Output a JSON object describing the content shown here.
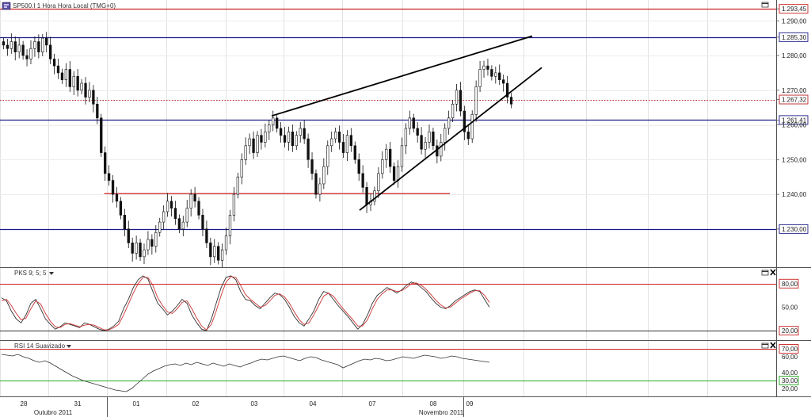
{
  "header": {
    "symbol_icon": "chart-symbol-icon",
    "instrument_title": "SP500.I 1 Hora Hora Local (TMG+0)"
  },
  "chart_data": [
    {
      "type": "candlestick",
      "name": "SP500.I 1 Hora",
      "ylim": [
        1219,
        1296
      ],
      "y_ticks": [
        "1.293,45",
        "1.290,00",
        "1.285,30",
        "1.280,00",
        "1.270,00",
        "1.267,32",
        "1.261,41",
        "1.260,00",
        "1.250,00",
        "1.240,00",
        "1.230,00"
      ],
      "h_lines": [
        {
          "value": 1293.45,
          "label": "1.293,45",
          "color": "#cc2222",
          "style": "solid"
        },
        {
          "value": 1285.3,
          "label": "1.285,30",
          "color": "#1a1a88",
          "style": "solid"
        },
        {
          "value": 1267.32,
          "label": "1.267,32",
          "color": "#bb2222",
          "style": "dotted"
        },
        {
          "value": 1261.41,
          "label": "1.261,41",
          "color": "#1a1a88",
          "style": "solid"
        },
        {
          "value": 1230.0,
          "label": "1.230,00",
          "color": "#1a1a88",
          "style": "solid"
        }
      ],
      "support_line": {
        "value": 1240.2,
        "color": "#cc2222",
        "from_index": 42,
        "to_index": 122
      },
      "trendlines": [
        {
          "from": {
            "index": 70,
            "value": 1262.6
          },
          "to": {
            "index": 144,
            "value": 1285.6
          }
        },
        {
          "from": {
            "index": 96,
            "value": 1235.4
          },
          "to": {
            "index": 144,
            "value": 1276.5
          }
        }
      ],
      "closes": [
        1283,
        1282,
        1284,
        1281,
        1283,
        1280,
        1279,
        1282,
        1284,
        1281,
        1285,
        1283,
        1279,
        1277,
        1275,
        1273,
        1276,
        1271,
        1274,
        1270,
        1272,
        1268,
        1270,
        1266,
        1262,
        1252,
        1246,
        1244,
        1240,
        1238,
        1234,
        1230,
        1226,
        1223,
        1226,
        1222,
        1224,
        1227,
        1225,
        1229,
        1232,
        1235,
        1238,
        1236,
        1233,
        1230,
        1232,
        1236,
        1240,
        1238,
        1234,
        1230,
        1226,
        1222,
        1225,
        1221,
        1224,
        1228,
        1234,
        1240,
        1245,
        1250,
        1254,
        1256,
        1252,
        1257,
        1255,
        1258,
        1260,
        1262,
        1259,
        1257,
        1255,
        1258,
        1254,
        1257,
        1259,
        1256,
        1250,
        1246,
        1240,
        1243,
        1248,
        1254,
        1256,
        1258,
        1255,
        1252,
        1257,
        1254,
        1250,
        1246,
        1242,
        1237,
        1238,
        1241,
        1246,
        1250,
        1253,
        1248,
        1244,
        1248,
        1254,
        1259,
        1262,
        1259,
        1257,
        1253,
        1255,
        1258,
        1254,
        1251,
        1255,
        1259,
        1262,
        1266,
        1270,
        1264,
        1258,
        1256,
        1263,
        1271,
        1276,
        1277,
        1276,
        1274,
        1275,
        1273,
        1272,
        1268,
        1266
      ],
      "x_tick_labels": [
        "28",
        "31",
        "01",
        "02",
        "03",
        "04",
        "07",
        "08",
        "09"
      ],
      "month_labels": [
        "Outubro 2011",
        "Novembro 2011"
      ]
    },
    {
      "type": "line",
      "name": "PKS 9; 5; 5",
      "ylim": [
        8,
        100
      ],
      "y_ticks": [
        "80,00",
        "50,00",
        "20,00"
      ],
      "levels": [
        80,
        20
      ],
      "series": [
        {
          "color": "#333333",
          "values": [
            62,
            58,
            45,
            35,
            30,
            40,
            55,
            60,
            48,
            35,
            28,
            22,
            25,
            30,
            28,
            26,
            24,
            30,
            28,
            25,
            22,
            20,
            22,
            26,
            32,
            48,
            60,
            75,
            85,
            90,
            86,
            70,
            55,
            48,
            40,
            45,
            52,
            60,
            55,
            40,
            30,
            22,
            20,
            35,
            55,
            75,
            88,
            90,
            85,
            70,
            60,
            58,
            52,
            48,
            55,
            62,
            68,
            66,
            60,
            50,
            38,
            30,
            26,
            35,
            45,
            60,
            70,
            68,
            60,
            52,
            45,
            38,
            30,
            22,
            28,
            40,
            55,
            65,
            70,
            75,
            72,
            68,
            72,
            78,
            82,
            80,
            75,
            70,
            62,
            55,
            50,
            48,
            52,
            58,
            62,
            66,
            70,
            72,
            70,
            60,
            50
          ]
        },
        {
          "color": "#cc3333",
          "values": [
            58,
            60,
            52,
            42,
            34,
            36,
            48,
            58,
            54,
            42,
            32,
            25,
            24,
            28,
            29,
            27,
            25,
            27,
            28,
            27,
            24,
            21,
            21,
            24,
            28,
            40,
            54,
            68,
            80,
            88,
            88,
            78,
            62,
            52,
            44,
            42,
            48,
            56,
            58,
            48,
            36,
            26,
            21,
            28,
            45,
            65,
            82,
            89,
            88,
            78,
            66,
            60,
            55,
            50,
            52,
            58,
            65,
            67,
            63,
            55,
            44,
            34,
            28,
            30,
            40,
            52,
            64,
            68,
            64,
            56,
            48,
            41,
            34,
            26,
            26,
            34,
            48,
            60,
            67,
            72,
            72,
            70,
            71,
            75,
            80,
            81,
            78,
            73,
            66,
            59,
            53,
            49,
            50,
            55,
            60,
            64,
            68,
            71,
            71,
            65,
            56
          ]
        }
      ]
    },
    {
      "type": "line",
      "name": "RSI 14 Suavizado",
      "ylim": [
        10,
        80
      ],
      "y_ticks": [
        "70,00",
        "60,00",
        "40,00",
        "30,00",
        "20,00"
      ],
      "levels": [
        {
          "value": 70,
          "color": "#cc2222"
        },
        {
          "value": 30,
          "color": "#22aa22"
        }
      ],
      "series": [
        {
          "color": "#333333",
          "values": [
            63,
            62,
            61,
            63,
            60,
            58,
            55,
            53,
            55,
            52,
            48,
            44,
            40,
            36,
            33,
            30,
            28,
            26,
            24,
            22,
            20,
            18,
            17,
            16,
            20,
            26,
            32,
            38,
            42,
            45,
            48,
            50,
            51,
            49,
            52,
            50,
            53,
            51,
            49,
            52,
            50,
            48,
            51,
            49,
            47,
            50,
            52,
            55,
            57,
            56,
            58,
            60,
            61,
            59,
            57,
            55,
            58,
            60,
            59,
            56,
            54,
            52,
            50,
            46,
            49,
            52,
            55,
            57,
            56,
            58,
            57,
            55,
            56,
            58,
            60,
            59,
            58,
            60,
            62,
            61,
            60,
            58,
            59,
            61,
            60,
            58,
            57,
            56,
            55,
            54,
            53
          ]
        }
      ]
    }
  ]
}
